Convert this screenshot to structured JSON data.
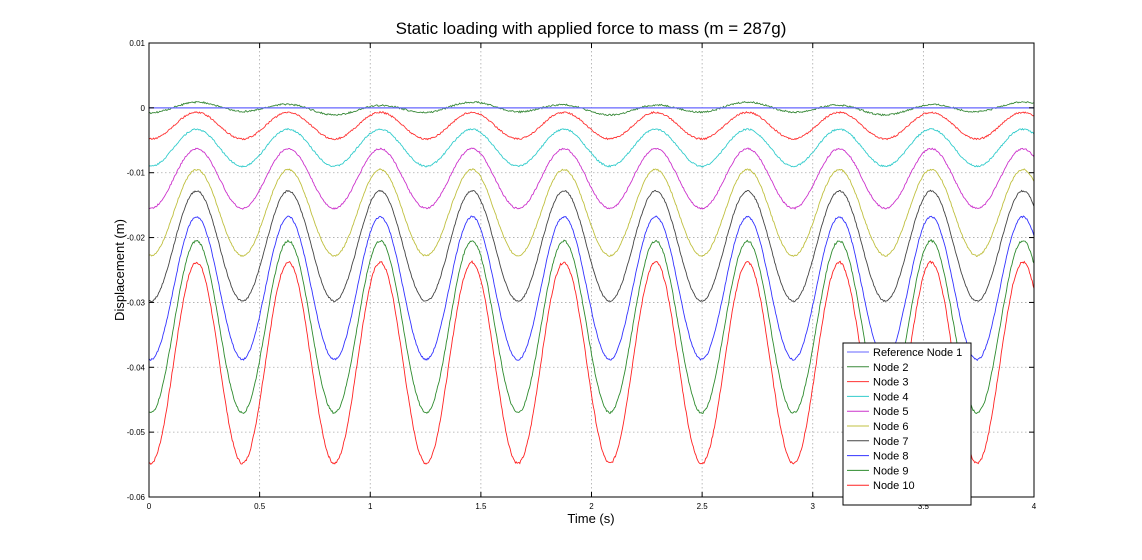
{
  "chart_data": {
    "type": "line",
    "title": "Static loading with applied force to mass (m = 287g)",
    "xlabel": "Time (s)",
    "ylabel": "Displacement (m)",
    "xlim": [
      0,
      4
    ],
    "ylim": [
      -0.06,
      0.01
    ],
    "xticks": [
      0,
      0.5,
      1,
      1.5,
      2,
      2.5,
      3,
      3.5,
      4
    ],
    "xtick_labels": [
      "0",
      "0.5",
      "1",
      "1.5",
      "2",
      "2.5",
      "3",
      "3.5",
      "4"
    ],
    "yticks": [
      0.01,
      0,
      -0.01,
      -0.02,
      -0.03,
      -0.04,
      -0.05,
      -0.06
    ],
    "ytick_labels": [
      "0.01",
      "0",
      "-0.01",
      "-0.02",
      "-0.03",
      "-0.04",
      "-0.05",
      "-0.06"
    ],
    "grid": true,
    "legend_position": "bottom-right",
    "period_s": 0.415,
    "series": [
      {
        "name": "Reference Node 1",
        "color": "#6666ff",
        "min": 0.0,
        "max": 0.0,
        "first_peak_s": 0.215
      },
      {
        "name": "Node 2",
        "color": "#3a8a3a",
        "min": -0.0008,
        "max": 0.0006,
        "first_peak_s": 0.215
      },
      {
        "name": "Node 3",
        "color": "#ff3333",
        "min": -0.0048,
        "max": -0.0007,
        "first_peak_s": 0.215
      },
      {
        "name": "Node 4",
        "color": "#33cccc",
        "min": -0.009,
        "max": -0.0033,
        "first_peak_s": 0.215
      },
      {
        "name": "Node 5",
        "color": "#cc33cc",
        "min": -0.0155,
        "max": -0.0063,
        "first_peak_s": 0.215
      },
      {
        "name": "Node 6",
        "color": "#c0c040",
        "min": -0.0228,
        "max": -0.0095,
        "first_peak_s": 0.215
      },
      {
        "name": "Node 7",
        "color": "#444444",
        "min": -0.0298,
        "max": -0.0128,
        "first_peak_s": 0.215
      },
      {
        "name": "Node 8",
        "color": "#3333ff",
        "min": -0.0388,
        "max": -0.0168,
        "first_peak_s": 0.215
      },
      {
        "name": "Node 9",
        "color": "#2e8b2e",
        "min": -0.047,
        "max": -0.0205,
        "first_peak_s": 0.215
      },
      {
        "name": "Node 10",
        "color": "#ff2222",
        "min": -0.0548,
        "max": -0.0238,
        "first_peak_s": 0.215
      }
    ]
  }
}
